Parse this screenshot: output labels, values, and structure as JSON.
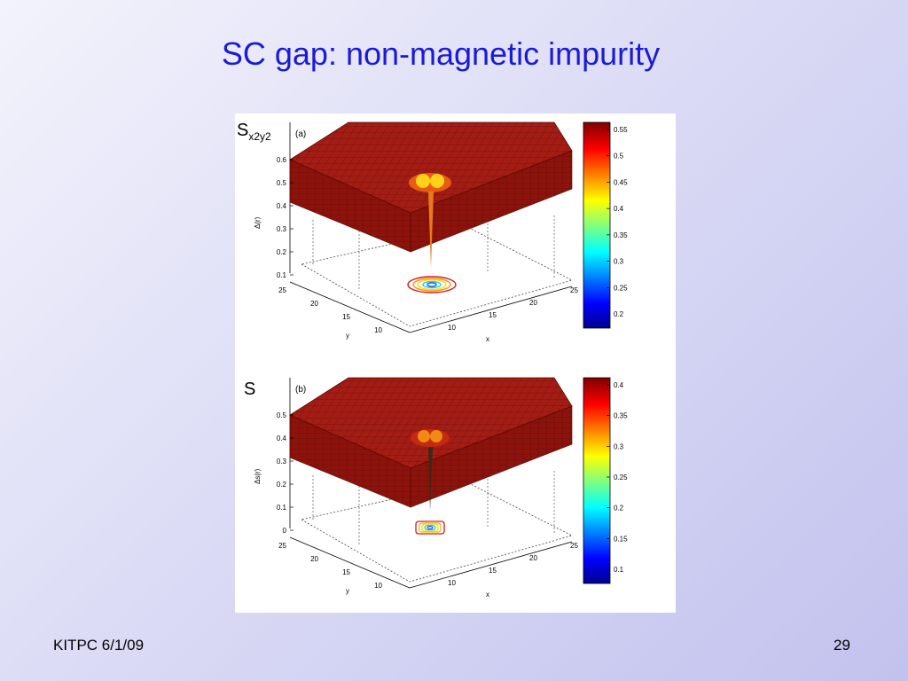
{
  "slide": {
    "title": "SC gap: non-magnetic impurity",
    "footer_left": "KITPC 6/1/09",
    "page_number": "29"
  },
  "panels": [
    {
      "tag": "(a)",
      "side_label": "S",
      "side_label_sub": "x2y2",
      "zlabel": "Δ(r)",
      "xlabel": "x",
      "ylabel": "y",
      "z_ticks": [
        "0.1",
        "0.2",
        "0.3",
        "0.4",
        "0.5",
        "0.6"
      ],
      "x_ticks": [
        "10",
        "15",
        "20",
        "25"
      ],
      "y_ticks": [
        "10",
        "15",
        "20",
        "25"
      ],
      "colorbar_ticks": [
        "0.2",
        "0.25",
        "0.3",
        "0.35",
        "0.4",
        "0.45",
        "0.5",
        "0.55"
      ]
    },
    {
      "tag": "(b)",
      "side_label": "S",
      "side_label_sub": "",
      "zlabel": "Δs(r)",
      "xlabel": "x",
      "ylabel": "y",
      "z_ticks": [
        "0",
        "0.1",
        "0.2",
        "0.3",
        "0.4",
        "0.5"
      ],
      "x_ticks": [
        "10",
        "15",
        "20",
        "25"
      ],
      "y_ticks": [
        "10",
        "15",
        "20",
        "25"
      ],
      "colorbar_ticks": [
        "0.1",
        "0.15",
        "0.2",
        "0.25",
        "0.3",
        "0.35",
        "0.4"
      ]
    }
  ],
  "colors": {
    "title": "#1a1ad8",
    "surface": "#9e1a12",
    "surface_mesh": "#6a0b06"
  }
}
